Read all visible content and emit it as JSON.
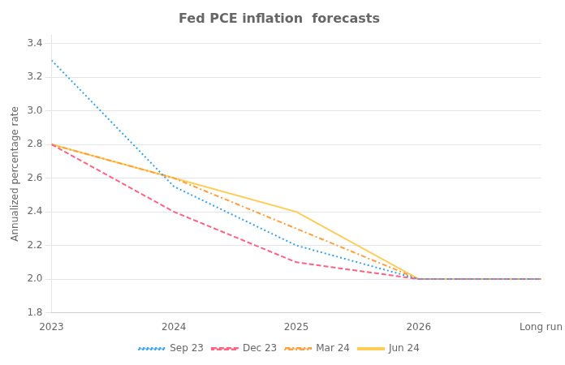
{
  "chart_data": {
    "type": "line",
    "title": "Fed PCE inflation  forecasts",
    "ylabel": "Annualized percentage rate",
    "categories": [
      "2023",
      "2024",
      "2025",
      "2026",
      "Long run"
    ],
    "series": [
      {
        "name": "Sep 23",
        "values": [
          3.3,
          2.55,
          2.2,
          2.0,
          2.0
        ],
        "line_style": "dotted"
      },
      {
        "name": "Dec 23",
        "values": [
          2.8,
          2.4,
          2.1,
          2.0,
          2.0
        ],
        "line_style": "dashed"
      },
      {
        "name": "Mar 24",
        "values": [
          2.8,
          2.6,
          2.3,
          2.0,
          2.0
        ],
        "line_style": "dashdot"
      },
      {
        "name": "Jun 24",
        "values": [
          2.8,
          2.6,
          2.4,
          2.0,
          2.0
        ],
        "line_style": "solid"
      }
    ],
    "ylim": [
      1.8,
      3.45
    ],
    "yticks": [
      1.8,
      {
        "value": 2.0,
        "label": "2.0"
      },
      2.2,
      2.4,
      2.6,
      2.8,
      {
        "value": 3.0,
        "label": "3.0"
      },
      3.2,
      3.4
    ],
    "grid": true,
    "legend": "bottom"
  }
}
